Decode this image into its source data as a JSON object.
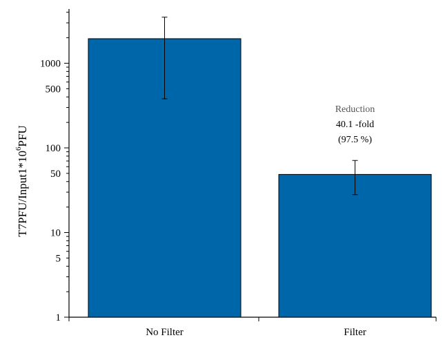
{
  "chart_data": {
    "type": "bar",
    "title": "",
    "categories": [
      "No Filter",
      "Filter"
    ],
    "values": [
      1950,
      48.6
    ],
    "error_bars": [
      {
        "low": 380,
        "high": 3500
      },
      {
        "low": 28,
        "high": 71
      }
    ],
    "ylabel": {
      "main": "T7PFU/Input1*10",
      "superscript": "6",
      "tail": "PFU"
    },
    "xlabel": "",
    "yscale": "log",
    "ylim": [
      1,
      5000
    ],
    "yticks": [
      {
        "value": 1,
        "label": "1"
      },
      {
        "value": 5,
        "label": "5"
      },
      {
        "value": 10,
        "label": "10"
      },
      {
        "value": 50,
        "label": "50"
      },
      {
        "value": 100,
        "label": "100"
      },
      {
        "value": 500,
        "label": "500"
      },
      {
        "value": 1000,
        "label": "1000"
      }
    ],
    "annotation": {
      "category": "Filter",
      "lines": [
        "Reduction",
        "40.1 -fold",
        "(97.5 %)"
      ]
    },
    "bar_color": "#0066AA",
    "grid": false,
    "legend": "none"
  }
}
